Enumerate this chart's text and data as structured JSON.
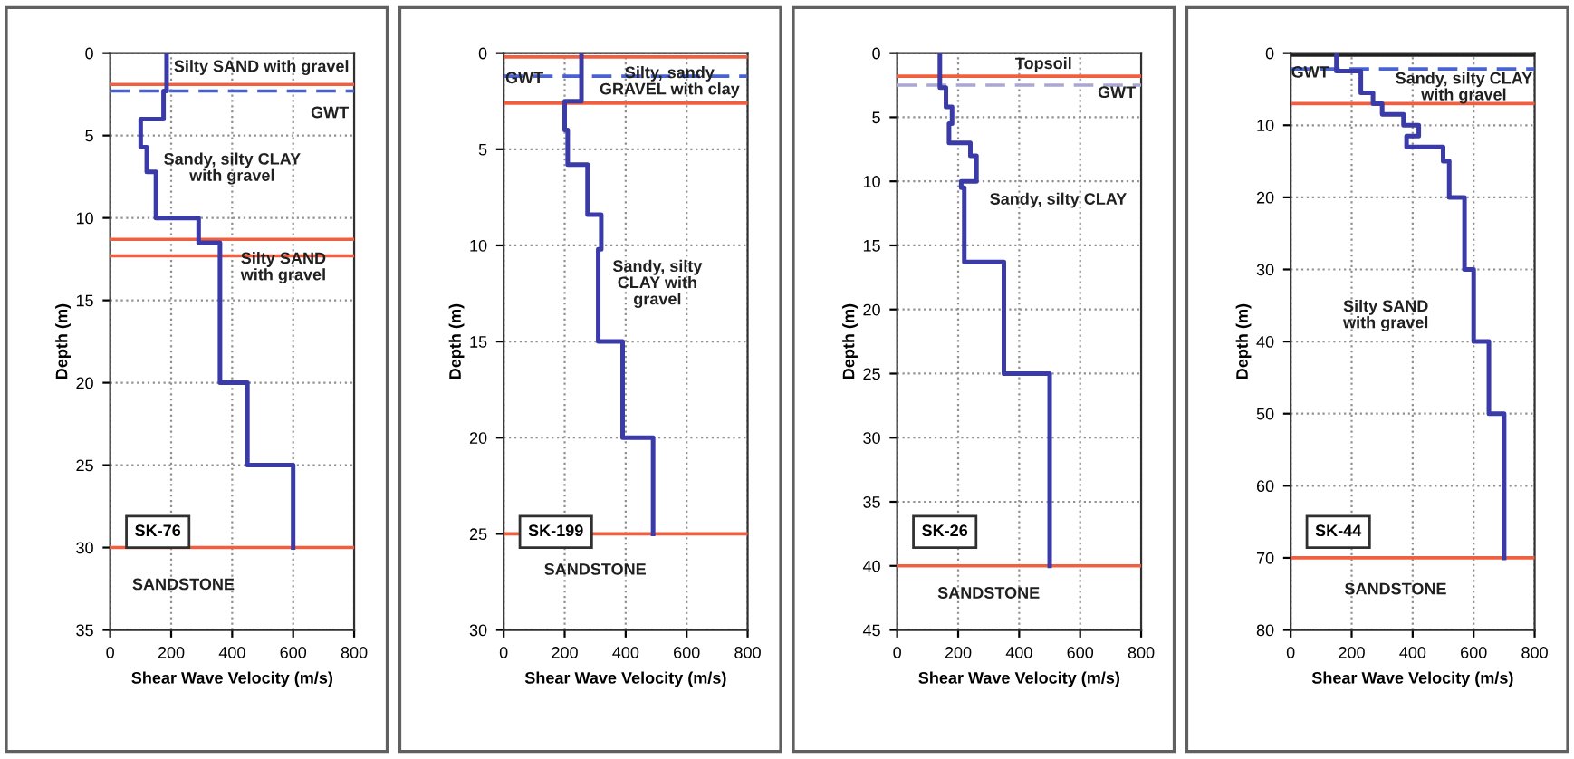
{
  "chart_data": [
    {
      "type": "line",
      "xlabel": "Shear Wave Velocity (m/s)",
      "ylabel": "Depth (m)",
      "xlim": [
        0,
        800
      ],
      "xticks": [
        0,
        200,
        400,
        600,
        800
      ],
      "ylim": [
        35,
        0
      ],
      "yticks": [
        0,
        5,
        10,
        15,
        20,
        25,
        30,
        35
      ],
      "grid": true,
      "line_style": "solid",
      "marker": "none",
      "series": [
        {
          "color": "#3a3aa8",
          "x": [
            185,
            185,
            175,
            175,
            100,
            100,
            120,
            120,
            150,
            150,
            290,
            290,
            360,
            360,
            450,
            450,
            600,
            600
          ],
          "values": [
            0,
            2.3,
            2.3,
            4,
            4,
            5.7,
            5.7,
            7.2,
            7.2,
            10,
            10,
            11.5,
            11.5,
            20,
            20,
            25,
            25,
            30
          ]
        }
      ],
      "ref_lines": [
        {
          "axis": "y",
          "value": 1.9,
          "color": "#f06040",
          "line_style": "solid"
        },
        {
          "axis": "y",
          "value": 2.3,
          "color": "#4a62d0",
          "line_style": "dashed"
        },
        {
          "axis": "y",
          "value": 11.3,
          "color": "#f06040",
          "line_style": "solid"
        },
        {
          "axis": "y",
          "value": 12.3,
          "color": "#f06040",
          "line_style": "solid"
        },
        {
          "axis": "y",
          "value": 30,
          "color": "#f06040",
          "line_style": "solid"
        }
      ],
      "annotations": [
        "Silty SAND with gravel",
        "GWT",
        "Sandy, silty CLAY\nwith gravel",
        "Silty SAND\nwith gravel",
        "SANDSTONE",
        "SK-76"
      ]
    },
    {
      "type": "line",
      "xlabel": "Shear Wave Velocity (m/s)",
      "ylabel": "Depth (m)",
      "xlim": [
        0,
        800
      ],
      "xticks": [
        0,
        200,
        400,
        600,
        800
      ],
      "ylim": [
        30,
        0
      ],
      "yticks": [
        0,
        5,
        10,
        15,
        20,
        25,
        30
      ],
      "grid": true,
      "line_style": "solid",
      "marker": "none",
      "series": [
        {
          "color": "#3a3aa8",
          "x": [
            255,
            255,
            200,
            200,
            210,
            210,
            275,
            275,
            320,
            320,
            310,
            310,
            390,
            390,
            490,
            490
          ],
          "values": [
            0,
            2.5,
            2.5,
            4,
            4,
            5.8,
            5.8,
            8.4,
            8.4,
            10.2,
            10.2,
            15,
            15,
            20,
            20,
            25
          ]
        }
      ],
      "ref_lines": [
        {
          "axis": "y",
          "value": 0.2,
          "color": "#f06040",
          "line_style": "solid"
        },
        {
          "axis": "y",
          "value": 1.2,
          "color": "#4a62d0",
          "line_style": "dashed"
        },
        {
          "axis": "y",
          "value": 2.6,
          "color": "#f06040",
          "line_style": "solid"
        },
        {
          "axis": "y",
          "value": 25,
          "color": "#f06040",
          "line_style": "solid"
        }
      ],
      "annotations": [
        "GWT",
        "Silty, sandy\nGRAVEL with clay",
        "Sandy, silty\nCLAY with\ngravel",
        "SANDSTONE",
        "SK-199"
      ]
    },
    {
      "type": "line",
      "xlabel": "Shear Wave Velocity (m/s)",
      "ylabel": "Depth (m)",
      "xlim": [
        0,
        800
      ],
      "xticks": [
        0,
        200,
        400,
        600,
        800
      ],
      "ylim": [
        45,
        0
      ],
      "yticks": [
        0,
        5,
        10,
        15,
        20,
        25,
        30,
        35,
        40,
        45
      ],
      "grid": true,
      "line_style": "solid",
      "marker": "none",
      "series": [
        {
          "color": "#3a3aa8",
          "x": [
            140,
            140,
            160,
            160,
            180,
            180,
            170,
            170,
            240,
            240,
            260,
            260,
            210,
            210,
            220,
            220,
            350,
            350,
            500,
            500
          ],
          "values": [
            0,
            2.7,
            2.7,
            4.2,
            4.2,
            5.5,
            5.5,
            7,
            7,
            8,
            8,
            10,
            10,
            10.5,
            10.5,
            16.3,
            16.3,
            25,
            25,
            40
          ]
        }
      ],
      "ref_lines": [
        {
          "axis": "y",
          "value": 1.8,
          "color": "#f06040",
          "line_style": "solid"
        },
        {
          "axis": "y",
          "value": 2.5,
          "color": "#a8a8d0",
          "line_style": "dashed"
        },
        {
          "axis": "y",
          "value": 40,
          "color": "#f06040",
          "line_style": "solid"
        }
      ],
      "annotations": [
        "Topsoil",
        "GWT",
        "Sandy, silty CLAY",
        "SANDSTONE",
        "SK-26"
      ]
    },
    {
      "type": "line",
      "xlabel": "Shear Wave Velocity (m/s)",
      "ylabel": "Depth (m)",
      "xlim": [
        0,
        800
      ],
      "xticks": [
        0,
        200,
        400,
        600,
        800
      ],
      "ylim": [
        80,
        0
      ],
      "yticks": [
        0,
        10,
        20,
        30,
        40,
        50,
        60,
        70,
        80
      ],
      "grid": true,
      "line_style": "solid",
      "marker": "none",
      "series": [
        {
          "color": "#3a3aa8",
          "x": [
            150,
            150,
            230,
            230,
            270,
            270,
            300,
            300,
            370,
            370,
            420,
            420,
            380,
            380,
            500,
            500,
            520,
            520,
            570,
            570,
            600,
            600,
            650,
            650,
            700,
            700
          ],
          "values": [
            0,
            2.5,
            2.5,
            5.5,
            5.5,
            7,
            7,
            8.5,
            8.5,
            10,
            10,
            11.5,
            11.5,
            13,
            13,
            15,
            15,
            20,
            20,
            30,
            30,
            40,
            40,
            50,
            50,
            70
          ]
        }
      ],
      "ref_lines": [
        {
          "axis": "y",
          "value": 0.3,
          "color": "#202020",
          "line_style": "solid"
        },
        {
          "axis": "y",
          "value": 2.2,
          "color": "#4a62d0",
          "line_style": "dashed"
        },
        {
          "axis": "y",
          "value": 7,
          "color": "#f06040",
          "line_style": "solid"
        },
        {
          "axis": "y",
          "value": 70,
          "color": "#f06040",
          "line_style": "solid"
        }
      ],
      "annotations": [
        "GWT",
        "Sandy, silty CLAY\nwith gravel",
        "Silty SAND\nwith gravel",
        "SANDSTONE",
        "SK-44"
      ]
    }
  ]
}
